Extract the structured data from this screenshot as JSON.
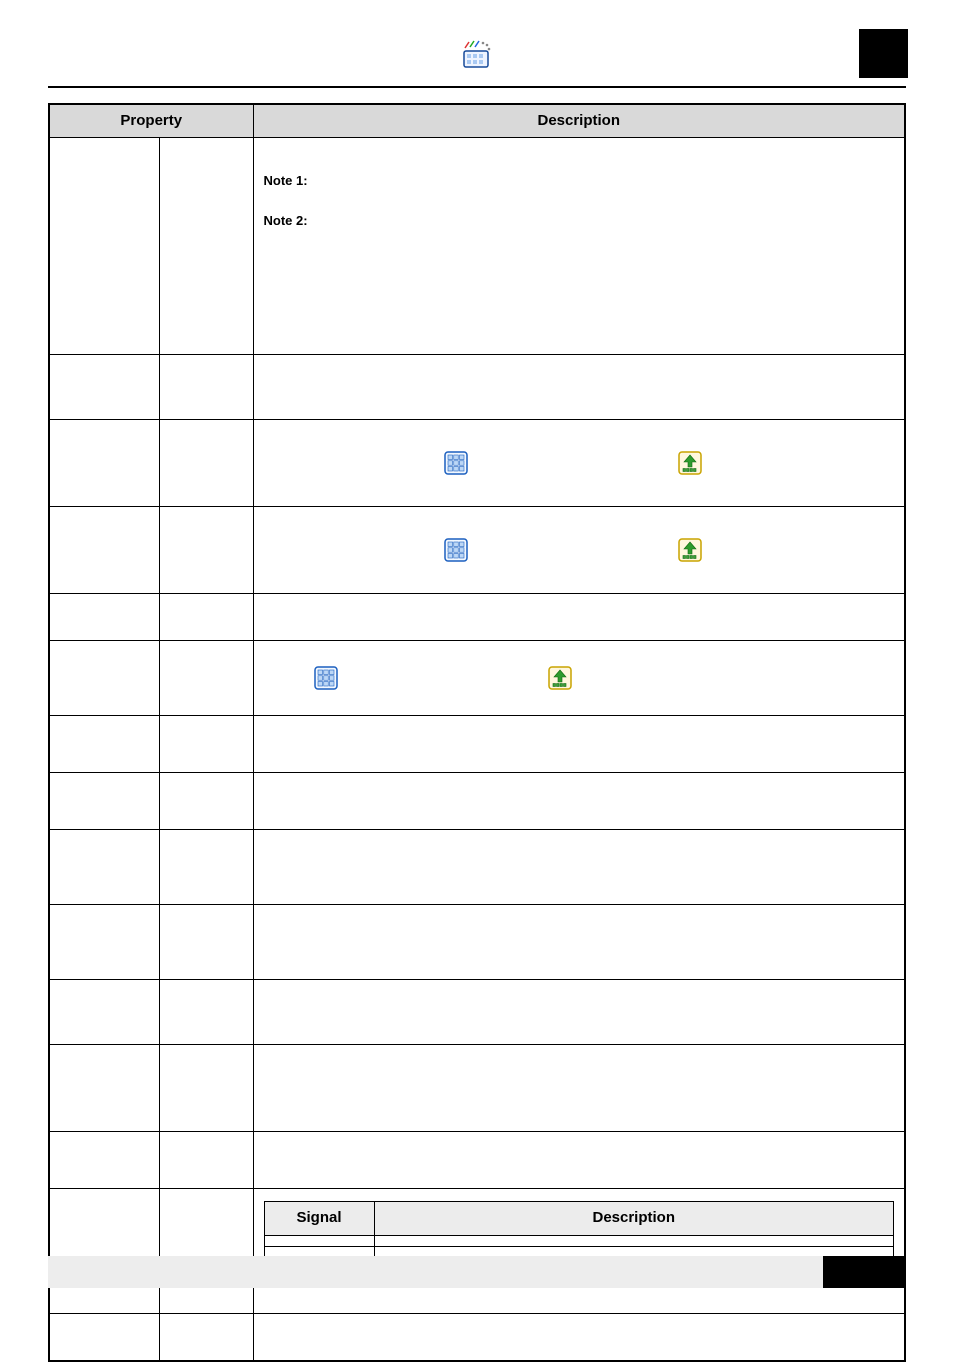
{
  "header": {
    "logo_name": "application-logo-icon",
    "rule_color": "#000000",
    "corner_block_color": "#000000"
  },
  "main_table": {
    "columns": [
      "Property",
      "",
      "Description"
    ],
    "rows": [
      {
        "col1": "",
        "col2": "",
        "desc_kind": "notes",
        "note1_label": "Note 1:",
        "note1_text": "",
        "note2_label": "Note 2:",
        "note2_text": ""
      },
      {
        "col1": "",
        "col2": "",
        "desc_kind": "blank",
        "h": "h-48"
      },
      {
        "col1": "",
        "col2": "",
        "desc_kind": "icon_pair",
        "h": "h-70",
        "icon1": "keypad-icon",
        "icon2": "upload-icon",
        "gap": "gap-210",
        "left": ""
      },
      {
        "col1": "",
        "col2": "",
        "desc_kind": "icon_pair",
        "h": "h-70",
        "icon1": "keypad-icon",
        "icon2": "upload-icon",
        "gap": "gap-210",
        "left": ""
      },
      {
        "col1": "",
        "col2": "",
        "desc_kind": "blank",
        "h": "h-30"
      },
      {
        "col1": "",
        "col2": "",
        "desc_kind": "icon_pair",
        "h": "h-58",
        "icon1": "keypad-icon",
        "icon2": "upload-icon",
        "gap": "gap-210",
        "left": "leftpad-50"
      },
      {
        "col1": "",
        "col2": "",
        "desc_kind": "blank",
        "h": "h-40"
      },
      {
        "col1": "",
        "col2": "",
        "desc_kind": "blank",
        "h": "h-40"
      },
      {
        "col1": "",
        "col2": "",
        "desc_kind": "blank",
        "h": "h-58"
      },
      {
        "col1": "",
        "col2": "",
        "desc_kind": "blank",
        "h": "h-58"
      },
      {
        "col1": "",
        "col2": "",
        "desc_kind": "blank",
        "h": "h-48"
      },
      {
        "col1": "",
        "col2": "",
        "desc_kind": "blank",
        "h": "h-70"
      },
      {
        "col1": "",
        "col2": "",
        "desc_kind": "blank",
        "h": "h-40"
      },
      {
        "col1": "",
        "col2": "",
        "desc_kind": "signal",
        "signal_header": [
          "Signal",
          "Description"
        ],
        "signal_rows": [
          [
            "",
            ""
          ],
          [
            "",
            ""
          ]
        ]
      },
      {
        "col1": "",
        "col2": "",
        "desc_kind": "blank",
        "h": "h-30"
      },
      {
        "col1": "",
        "col2": "",
        "desc_kind": "blank",
        "h": "h-30"
      }
    ]
  },
  "footer": {
    "bar_color": "#ededed",
    "black_color": "#000000"
  },
  "icons": {
    "keypad": {
      "bg": "#f2f8ff",
      "stroke": "#1b5fbf",
      "key": "#bcd7f6"
    },
    "upload": {
      "bg": "#fff7dd",
      "stroke": "#c9a400",
      "arrow": "#2e9b2e"
    }
  }
}
